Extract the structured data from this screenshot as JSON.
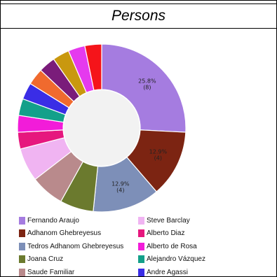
{
  "title": "Persons",
  "chart_data": {
    "type": "pie",
    "donut": true,
    "legend_position": "bottom",
    "slices": [
      {
        "name": "Fernando Araujo",
        "value": 8,
        "label": "25.8%\n(8)",
        "color": "#a57ce0"
      },
      {
        "name": "Adhanom Ghebreyesus",
        "value": 4,
        "label": "12.9%\n(4)",
        "color": "#7c2412"
      },
      {
        "name": "Tedros Adhanom Ghebreyesus",
        "value": 4,
        "label": "12.9%\n(4)",
        "color": "#7d8fb8"
      },
      {
        "name": "Joana Cruz",
        "value": 2,
        "label": "",
        "color": "#6b7a2e"
      },
      {
        "name": "Saude Familiar",
        "value": 2,
        "label": "",
        "color": "#b98a8c"
      },
      {
        "name": "Steve Barclay",
        "value": 2,
        "label": "",
        "color": "#f0b4f2"
      },
      {
        "name": "Alberto Diaz",
        "value": 1,
        "label": "",
        "color": "#e6177e"
      },
      {
        "name": "Alberto de Rosa",
        "value": 1,
        "label": "",
        "color": "#f21cd9"
      },
      {
        "name": "Alejandro Vázquez",
        "value": 1,
        "label": "",
        "color": "#13a08a"
      },
      {
        "name": "Andre Agassi",
        "value": 1,
        "label": "",
        "color": "#3a2de6"
      },
      {
        "name": "",
        "value": 1,
        "label": "",
        "color": "#f06a2e"
      },
      {
        "name": "",
        "value": 1,
        "label": "",
        "color": "#7a1c7a"
      },
      {
        "name": "",
        "value": 1,
        "label": "",
        "color": "#c9980f"
      },
      {
        "name": "",
        "value": 1,
        "label": "",
        "color": "#e53aee"
      },
      {
        "name": "",
        "value": 1,
        "label": "",
        "color": "#f5141a"
      }
    ],
    "legend": [
      {
        "name": "Fernando Araujo",
        "color": "#a57ce0"
      },
      {
        "name": "Steve Barclay",
        "color": "#f0b4f2"
      },
      {
        "name": "Adhanom Ghebreyesus",
        "color": "#7c2412"
      },
      {
        "name": "Alberto Diaz",
        "color": "#e6177e"
      },
      {
        "name": "Tedros Adhanom Ghebreyesus",
        "color": "#7d8fb8"
      },
      {
        "name": "Alberto de Rosa",
        "color": "#f21cd9"
      },
      {
        "name": "Joana Cruz",
        "color": "#6b7a2e"
      },
      {
        "name": "Alejandro Vázquez",
        "color": "#13a08a"
      },
      {
        "name": "Saude Familiar",
        "color": "#b98a8c"
      },
      {
        "name": "Andre Agassi",
        "color": "#3a2de6"
      }
    ]
  }
}
